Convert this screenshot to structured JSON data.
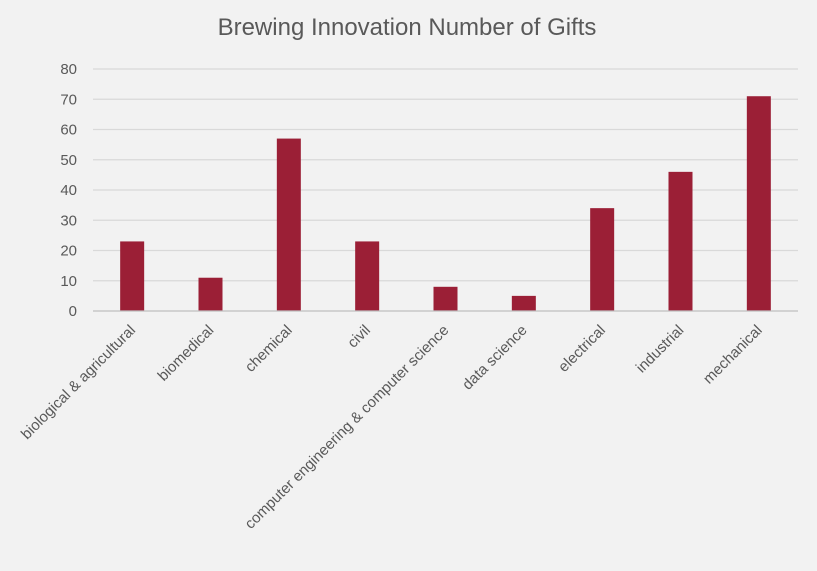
{
  "chart_data": {
    "type": "bar",
    "title": "Brewing Innovation Number of Gifts",
    "xlabel": "",
    "ylabel": "",
    "categories": [
      "biological & agricultural",
      "biomedical",
      "chemical",
      "civil",
      "computer engineering & computer science",
      "data science",
      "electrical",
      "industrial",
      "mechanical"
    ],
    "values": [
      23,
      11,
      57,
      23,
      8,
      5,
      34,
      46,
      71
    ],
    "ylim": [
      0,
      80
    ],
    "yticks": [
      "0",
      "10",
      "20",
      "30",
      "40",
      "50",
      "60",
      "70",
      "80"
    ],
    "grid": true,
    "legend": "none",
    "bar_color": "#9b1f36"
  }
}
